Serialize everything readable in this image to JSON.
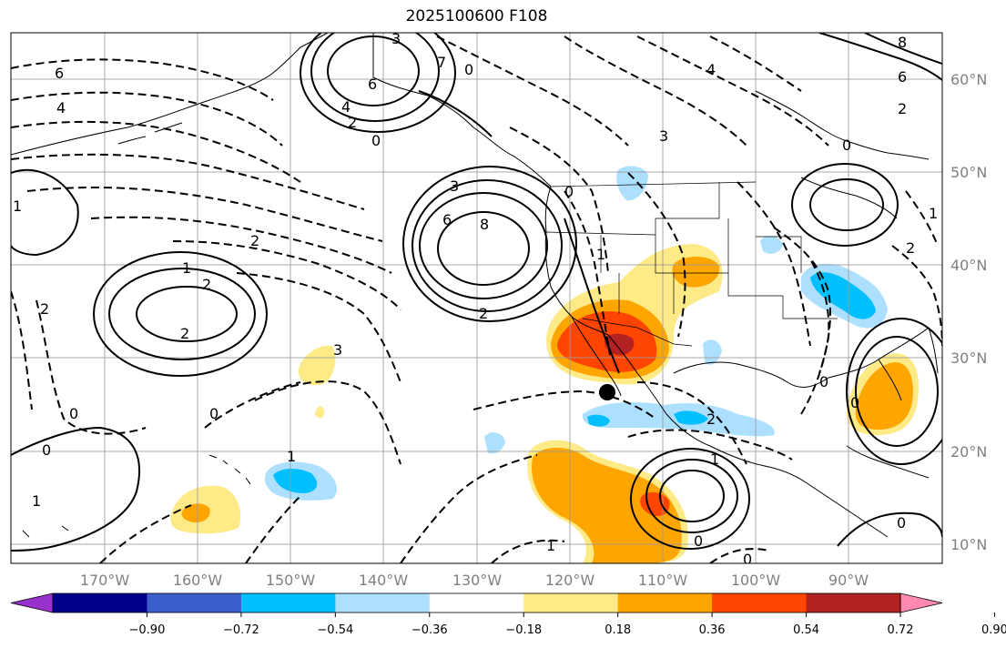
{
  "title": "2025100600 F108",
  "longitude_labels": [
    "170°W",
    "160°W",
    "150°W",
    "140°W",
    "130°W",
    "120°W",
    "110°W",
    "100°W",
    "90°W"
  ],
  "latitude_labels": [
    "60°N",
    "50°N",
    "40°N",
    "30°N",
    "20°N",
    "10°N"
  ],
  "colorbar": {
    "colors": [
      "#9932CC",
      "#00008B",
      "#3A5FCD",
      "#00BFFF",
      "#ADE0FF",
      "#FFFFFF",
      "#FFEA88",
      "#FFA500",
      "#FF4500",
      "#B22222",
      "#FF89B0"
    ],
    "tick_labels": [
      "−0.90",
      "−0.72",
      "−0.54",
      "−0.36",
      "−0.18",
      "0.18",
      "0.36",
      "0.54",
      "0.72",
      "0.90"
    ]
  },
  "contour_labels": [
    "3",
    "7",
    "0",
    "6",
    "4",
    "2",
    "0",
    "8",
    "6",
    "3",
    "2",
    "0",
    "2",
    "6",
    "4",
    "2",
    "3",
    "4",
    "6",
    "8",
    "2",
    "0",
    "1",
    "2",
    "2",
    "1",
    "0",
    "2",
    "0",
    "1",
    "0",
    "1",
    "1",
    "0",
    "1",
    "3",
    "2",
    "1",
    "0",
    "0",
    "0",
    "0",
    "1"
  ],
  "marker": {
    "name": "storm-center-dot",
    "color": "#000000"
  }
}
